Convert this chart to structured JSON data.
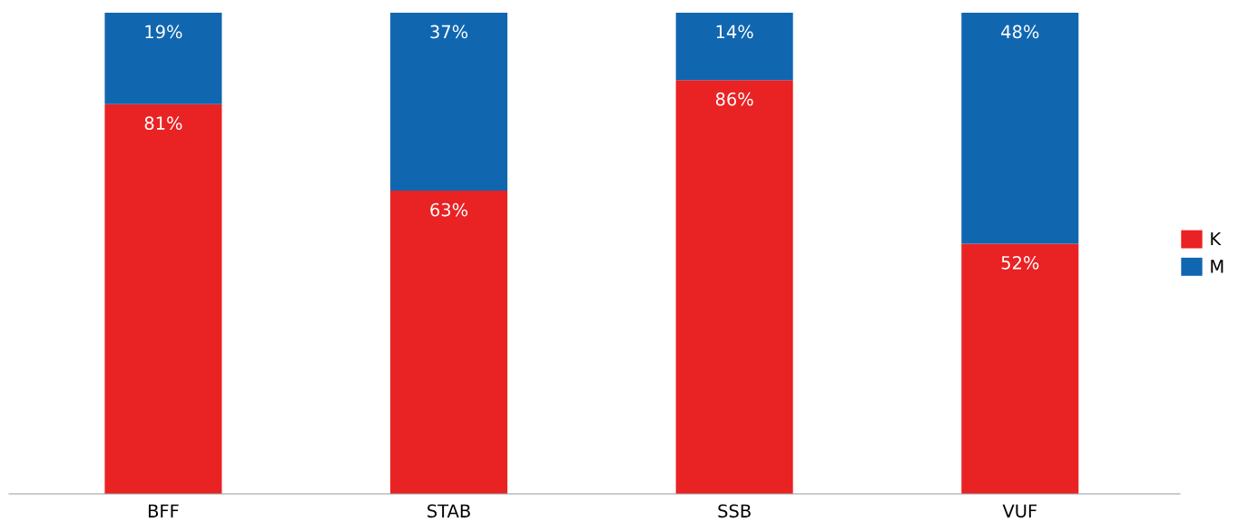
{
  "chart_data": {
    "type": "bar",
    "stacked": true,
    "categories": [
      "BFF",
      "STAB",
      "SSB",
      "VUF"
    ],
    "series": [
      {
        "name": "K",
        "color": "#e92223",
        "values": [
          81,
          63,
          86,
          52
        ],
        "value_labels": [
          "81%",
          "63%",
          "86%",
          "52%"
        ]
      },
      {
        "name": "M",
        "color": "#1166b0",
        "values": [
          19,
          37,
          14,
          48
        ],
        "value_labels": [
          "19%",
          "37%",
          "14%",
          "48%"
        ]
      }
    ],
    "ylim": [
      0,
      100
    ],
    "tick_labels": "x",
    "grid": false,
    "legend": "right"
  }
}
